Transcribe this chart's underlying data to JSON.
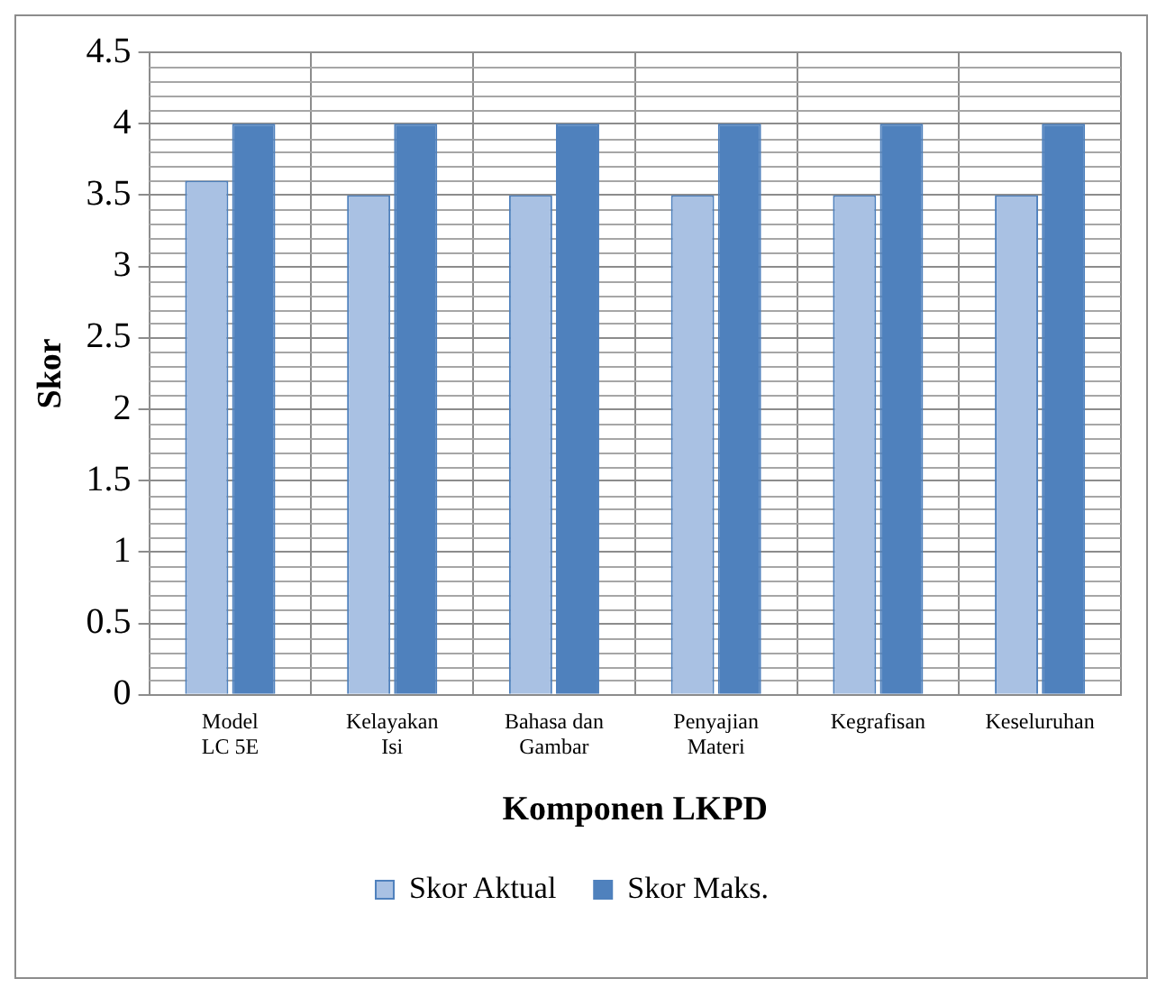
{
  "chart_data": {
    "type": "bar",
    "xlabel": "Komponen LKPD",
    "ylabel": "Skor",
    "categories": [
      "Model LC 5E",
      "Kelayakan Isi",
      "Bahasa dan Gambar",
      "Penyajian Materi",
      "Kegrafisan",
      "Keseluruhan"
    ],
    "series": [
      {
        "name": "Skor Aktual",
        "color": "#a9c1e3",
        "values": [
          3.6,
          3.5,
          3.5,
          3.5,
          3.5,
          3.5
        ]
      },
      {
        "name": "Skor Maks.",
        "color": "#4f81bd",
        "values": [
          4,
          4,
          4,
          4,
          4,
          4
        ]
      }
    ],
    "ylim": [
      0,
      4.5
    ],
    "yticks": [
      0,
      0.5,
      1,
      1.5,
      2,
      2.5,
      3,
      3.5,
      4,
      4.5
    ],
    "grid": true,
    "legend": "bottom"
  }
}
